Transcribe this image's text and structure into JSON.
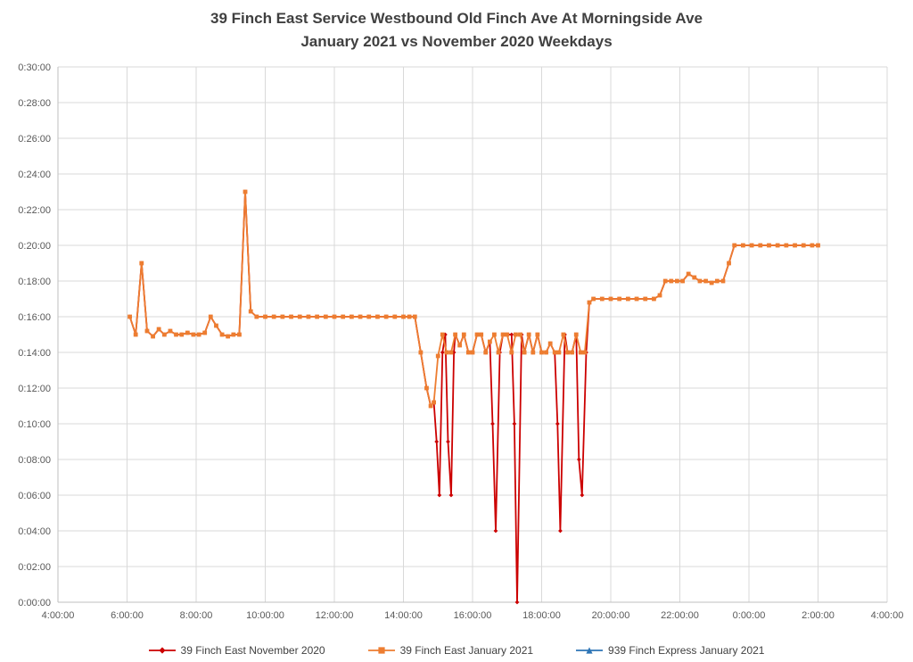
{
  "title": {
    "line1": "39 Finch East Service Westbound Old Finch Ave At Morningside Ave",
    "line2": "January 2021 vs November 2020 Weekdays"
  },
  "chart_data": {
    "type": "line",
    "title": "39 Finch East Service Westbound Old Finch Ave At Morningside Ave January 2021 vs November 2020 Weekdays",
    "xlabel": "",
    "ylabel": "",
    "grid": true,
    "legend_position": "bottom",
    "colors": {
      "axis": "#bfbfbf",
      "gridline": "#d9d9d9",
      "tick_text": "#595959",
      "title_text": "#404040"
    },
    "x_axis": {
      "min_hours": 4,
      "max_hours": 28,
      "tick_step_hours": 2,
      "ticks": [
        "4:00:00",
        "6:00:00",
        "8:00:00",
        "10:00:00",
        "12:00:00",
        "14:00:00",
        "16:00:00",
        "18:00:00",
        "20:00:00",
        "22:00:00",
        "0:00:00",
        "2:00:00",
        "4:00:00"
      ]
    },
    "y_axis": {
      "min_minutes": 0,
      "max_minutes": 30,
      "tick_step_minutes": 2,
      "ticks": [
        "0:00:00",
        "0:02:00",
        "0:04:00",
        "0:06:00",
        "0:08:00",
        "0:10:00",
        "0:12:00",
        "0:14:00",
        "0:16:00",
        "0:18:00",
        "0:20:00",
        "0:22:00",
        "0:24:00",
        "0:26:00",
        "0:28:00",
        "0:30:00"
      ]
    },
    "series": [
      {
        "name": "39 Finch East November 2020",
        "color": "#cc0000",
        "marker": "diamond",
        "points": [
          [
            6.08,
            16
          ],
          [
            6.25,
            15
          ],
          [
            6.42,
            19
          ],
          [
            6.58,
            15.2
          ],
          [
            6.75,
            14.9
          ],
          [
            6.92,
            15.3
          ],
          [
            7.08,
            15
          ],
          [
            7.25,
            15.2
          ],
          [
            7.42,
            15
          ],
          [
            7.58,
            15
          ],
          [
            7.75,
            15.1
          ],
          [
            7.92,
            15
          ],
          [
            8.08,
            15
          ],
          [
            8.25,
            15.1
          ],
          [
            8.42,
            16
          ],
          [
            8.58,
            15.5
          ],
          [
            8.75,
            15
          ],
          [
            8.92,
            14.9
          ],
          [
            9.08,
            15
          ],
          [
            9.25,
            15
          ],
          [
            9.42,
            23
          ],
          [
            9.58,
            16.3
          ],
          [
            9.75,
            16
          ],
          [
            10.0,
            16
          ],
          [
            10.25,
            16
          ],
          [
            10.5,
            16
          ],
          [
            10.75,
            16
          ],
          [
            11.0,
            16
          ],
          [
            11.25,
            16
          ],
          [
            11.5,
            16
          ],
          [
            11.75,
            16
          ],
          [
            12.0,
            16
          ],
          [
            12.25,
            16
          ],
          [
            12.5,
            16
          ],
          [
            12.75,
            16
          ],
          [
            13.0,
            16
          ],
          [
            13.25,
            16
          ],
          [
            13.5,
            16
          ],
          [
            13.75,
            16
          ],
          [
            14.0,
            16
          ],
          [
            14.17,
            16
          ],
          [
            14.33,
            16
          ],
          [
            14.5,
            14
          ],
          [
            14.67,
            12
          ],
          [
            14.79,
            11
          ],
          [
            14.88,
            11.2
          ],
          [
            14.96,
            9
          ],
          [
            15.04,
            6
          ],
          [
            15.13,
            14
          ],
          [
            15.21,
            15
          ],
          [
            15.29,
            9
          ],
          [
            15.38,
            6
          ],
          [
            15.46,
            14
          ],
          [
            15.5,
            15
          ],
          [
            15.63,
            14.4
          ],
          [
            15.75,
            15
          ],
          [
            15.88,
            14
          ],
          [
            16.0,
            14
          ],
          [
            16.13,
            15
          ],
          [
            16.25,
            15
          ],
          [
            16.38,
            14
          ],
          [
            16.5,
            14.6
          ],
          [
            16.58,
            10
          ],
          [
            16.67,
            4
          ],
          [
            16.79,
            14
          ],
          [
            16.88,
            15
          ],
          [
            17.0,
            15
          ],
          [
            17.13,
            15
          ],
          [
            17.21,
            10
          ],
          [
            17.29,
            0
          ],
          [
            17.42,
            15
          ],
          [
            17.5,
            14
          ],
          [
            17.63,
            15
          ],
          [
            17.75,
            14
          ],
          [
            17.88,
            15
          ],
          [
            18.0,
            14
          ],
          [
            18.13,
            14
          ],
          [
            18.25,
            14.5
          ],
          [
            18.38,
            14
          ],
          [
            18.46,
            10
          ],
          [
            18.54,
            4
          ],
          [
            18.67,
            15
          ],
          [
            18.75,
            14
          ],
          [
            18.88,
            14
          ],
          [
            19.0,
            15
          ],
          [
            19.08,
            8
          ],
          [
            19.17,
            6
          ],
          [
            19.29,
            14
          ],
          [
            19.38,
            16.8
          ],
          [
            19.5,
            17
          ],
          [
            19.75,
            17
          ],
          [
            20.0,
            17
          ],
          [
            20.25,
            17
          ],
          [
            20.5,
            17
          ],
          [
            20.75,
            17
          ],
          [
            21.0,
            17
          ],
          [
            21.25,
            17
          ],
          [
            21.42,
            17.2
          ],
          [
            21.58,
            18
          ],
          [
            21.75,
            18
          ],
          [
            21.92,
            18
          ],
          [
            22.08,
            18
          ],
          [
            22.25,
            18.4
          ],
          [
            22.42,
            18.2
          ],
          [
            22.58,
            18
          ],
          [
            22.75,
            18
          ],
          [
            22.92,
            17.9
          ],
          [
            23.08,
            18
          ],
          [
            23.25,
            18
          ],
          [
            23.42,
            19
          ],
          [
            23.58,
            20
          ],
          [
            23.83,
            20
          ],
          [
            24.08,
            20
          ],
          [
            24.33,
            20
          ],
          [
            24.58,
            20
          ],
          [
            24.83,
            20
          ],
          [
            25.08,
            20
          ],
          [
            25.33,
            20
          ],
          [
            25.58,
            20
          ],
          [
            25.83,
            20
          ],
          [
            26.0,
            20
          ]
        ]
      },
      {
        "name": "39 Finch East January 2021",
        "color": "#ed7d31",
        "marker": "square",
        "points": [
          [
            6.08,
            16
          ],
          [
            6.25,
            15
          ],
          [
            6.42,
            19
          ],
          [
            6.58,
            15.2
          ],
          [
            6.75,
            14.9
          ],
          [
            6.92,
            15.3
          ],
          [
            7.08,
            15
          ],
          [
            7.25,
            15.2
          ],
          [
            7.42,
            15
          ],
          [
            7.58,
            15
          ],
          [
            7.75,
            15.1
          ],
          [
            7.92,
            15
          ],
          [
            8.08,
            15
          ],
          [
            8.25,
            15.1
          ],
          [
            8.42,
            16
          ],
          [
            8.58,
            15.5
          ],
          [
            8.75,
            15
          ],
          [
            8.92,
            14.9
          ],
          [
            9.08,
            15
          ],
          [
            9.25,
            15
          ],
          [
            9.42,
            23
          ],
          [
            9.58,
            16.3
          ],
          [
            9.75,
            16
          ],
          [
            10.0,
            16
          ],
          [
            10.25,
            16
          ],
          [
            10.5,
            16
          ],
          [
            10.75,
            16
          ],
          [
            11.0,
            16
          ],
          [
            11.25,
            16
          ],
          [
            11.5,
            16
          ],
          [
            11.75,
            16
          ],
          [
            12.0,
            16
          ],
          [
            12.25,
            16
          ],
          [
            12.5,
            16
          ],
          [
            12.75,
            16
          ],
          [
            13.0,
            16
          ],
          [
            13.25,
            16
          ],
          [
            13.5,
            16
          ],
          [
            13.75,
            16
          ],
          [
            14.0,
            16
          ],
          [
            14.17,
            16
          ],
          [
            14.33,
            16
          ],
          [
            14.5,
            14
          ],
          [
            14.67,
            12
          ],
          [
            14.79,
            11
          ],
          [
            14.88,
            11.2
          ],
          [
            15.0,
            13.8
          ],
          [
            15.13,
            15
          ],
          [
            15.25,
            14
          ],
          [
            15.38,
            14
          ],
          [
            15.5,
            15
          ],
          [
            15.63,
            14.4
          ],
          [
            15.75,
            15
          ],
          [
            15.88,
            14
          ],
          [
            16.0,
            14
          ],
          [
            16.13,
            15
          ],
          [
            16.25,
            15
          ],
          [
            16.38,
            14
          ],
          [
            16.5,
            14.6
          ],
          [
            16.63,
            15
          ],
          [
            16.75,
            14
          ],
          [
            16.88,
            15
          ],
          [
            17.0,
            15
          ],
          [
            17.13,
            14
          ],
          [
            17.25,
            15
          ],
          [
            17.38,
            15
          ],
          [
            17.5,
            14
          ],
          [
            17.63,
            15
          ],
          [
            17.75,
            14
          ],
          [
            17.88,
            15
          ],
          [
            18.0,
            14
          ],
          [
            18.13,
            14
          ],
          [
            18.25,
            14.5
          ],
          [
            18.38,
            14
          ],
          [
            18.5,
            14
          ],
          [
            18.63,
            15
          ],
          [
            18.75,
            14
          ],
          [
            18.88,
            14
          ],
          [
            19.0,
            15
          ],
          [
            19.13,
            14
          ],
          [
            19.25,
            14
          ],
          [
            19.38,
            16.8
          ],
          [
            19.5,
            17
          ],
          [
            19.75,
            17
          ],
          [
            20.0,
            17
          ],
          [
            20.25,
            17
          ],
          [
            20.5,
            17
          ],
          [
            20.75,
            17
          ],
          [
            21.0,
            17
          ],
          [
            21.25,
            17
          ],
          [
            21.42,
            17.2
          ],
          [
            21.58,
            18
          ],
          [
            21.75,
            18
          ],
          [
            21.92,
            18
          ],
          [
            22.08,
            18
          ],
          [
            22.25,
            18.4
          ],
          [
            22.42,
            18.2
          ],
          [
            22.58,
            18
          ],
          [
            22.75,
            18
          ],
          [
            22.92,
            17.9
          ],
          [
            23.08,
            18
          ],
          [
            23.25,
            18
          ],
          [
            23.42,
            19
          ],
          [
            23.58,
            20
          ],
          [
            23.83,
            20
          ],
          [
            24.08,
            20
          ],
          [
            24.33,
            20
          ],
          [
            24.58,
            20
          ],
          [
            24.83,
            20
          ],
          [
            25.08,
            20
          ],
          [
            25.33,
            20
          ],
          [
            25.58,
            20
          ],
          [
            25.83,
            20
          ],
          [
            26.0,
            20
          ]
        ]
      },
      {
        "name": "939 Finch Express January 2021",
        "color": "#2e75b6",
        "marker": "triangle",
        "points": []
      }
    ]
  }
}
